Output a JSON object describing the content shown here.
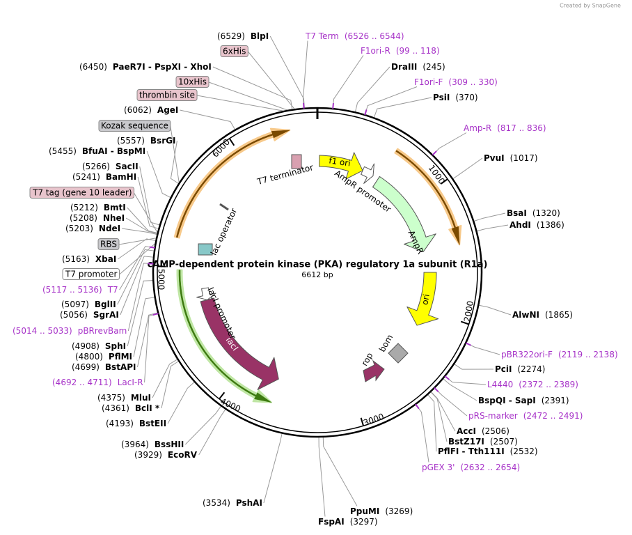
{
  "credit": "Created by SnapGene",
  "title": "cAMP-dependent protein kinase (PKA) regulatory 1a subunit (R1a)",
  "length": "6612 bp",
  "sites": [
    {
      "name": "BlpI",
      "location": "(6529)"
    },
    {
      "name": "PaeR7I  -  PspXI  -  XhoI",
      "location": "(6450)"
    },
    {
      "name": "AgeI",
      "location": "(6062)"
    },
    {
      "name": "BsrGI",
      "location": "(5557)"
    },
    {
      "name": "BfuAI  -  BspMI",
      "location": "(5455)"
    },
    {
      "name": "SacII",
      "location": "(5266)"
    },
    {
      "name": "BamHI",
      "location": "(5241)"
    },
    {
      "name": "BmtI",
      "location": "(5212)"
    },
    {
      "name": "NheI",
      "location": "(5208)"
    },
    {
      "name": "NdeI",
      "location": "(5203)"
    },
    {
      "name": "XbaI",
      "location": "(5163)"
    },
    {
      "name": "BglII",
      "location": "(5097)"
    },
    {
      "name": "SgrAI",
      "location": "(5056)"
    },
    {
      "name": "SphI",
      "location": "(4908)"
    },
    {
      "name": "PflMI",
      "location": "(4800)"
    },
    {
      "name": "BstAPI",
      "location": "(4699)"
    },
    {
      "name": "MluI",
      "location": "(4375)"
    },
    {
      "name": "BclI *",
      "location": "(4361)"
    },
    {
      "name": "BstEII",
      "location": "(4193)"
    },
    {
      "name": "BssHII",
      "location": "(3964)"
    },
    {
      "name": "EcoRV",
      "location": "(3929)"
    },
    {
      "name": "PshAI",
      "location": "(3534)"
    },
    {
      "name": "FspAI",
      "location": "(3297)"
    },
    {
      "name": "PpuMI",
      "location": "(3269)"
    },
    {
      "name": "DraIII",
      "location": "(245)"
    },
    {
      "name": "PsiI",
      "location": "(370)"
    },
    {
      "name": "PvuI",
      "location": "(1017)"
    },
    {
      "name": "BsaI",
      "location": "(1320)"
    },
    {
      "name": "AhdI",
      "location": "(1386)"
    },
    {
      "name": "AlwNI",
      "location": "(1865)"
    },
    {
      "name": "PciI",
      "location": "(2274)"
    },
    {
      "name": "BspQI  -  SapI",
      "location": "(2391)"
    },
    {
      "name": "AccI",
      "location": "(2506)"
    },
    {
      "name": "BstZ17I",
      "location": "(2507)"
    },
    {
      "name": "PflFI  -  Tth111I",
      "location": "(2532)"
    }
  ],
  "primers": [
    {
      "name": "T7",
      "location": "(5117 .. 5136)"
    },
    {
      "name": "pBRrevBam",
      "location": "(5014 .. 5033)"
    },
    {
      "name": "LacI-R",
      "location": "(4692 .. 4711)"
    },
    {
      "name": "T7 Term",
      "location": "(6526 .. 6544)"
    },
    {
      "name": "F1ori-R",
      "location": "(99 .. 118)"
    },
    {
      "name": "F1ori-F",
      "location": "(309 .. 330)"
    },
    {
      "name": "Amp-R",
      "location": "(817 .. 836)"
    },
    {
      "name": "pBR322ori-F",
      "location": "(2119 .. 2138)"
    },
    {
      "name": "L4440",
      "location": "(2372 .. 2389)"
    },
    {
      "name": "pRS-marker",
      "location": "(2472 .. 2491)"
    },
    {
      "name": "pGEX 3'",
      "location": "(2632 .. 2654)"
    }
  ],
  "feature_labels": [
    "6xHis",
    "10xHis",
    "thrombin site",
    "Kozak sequence",
    "T7 tag (gene 10 leader)",
    "RBS",
    "T7 promoter"
  ],
  "map_features": [
    "T7 terminator",
    "f1 ori",
    "AmpR promoter",
    "AmpR",
    "ori",
    "rop",
    "bom",
    "lacI",
    "lacI promoter",
    "lac operator"
  ],
  "ruler": [
    1000,
    2000,
    3000,
    4000,
    5000,
    6000
  ]
}
